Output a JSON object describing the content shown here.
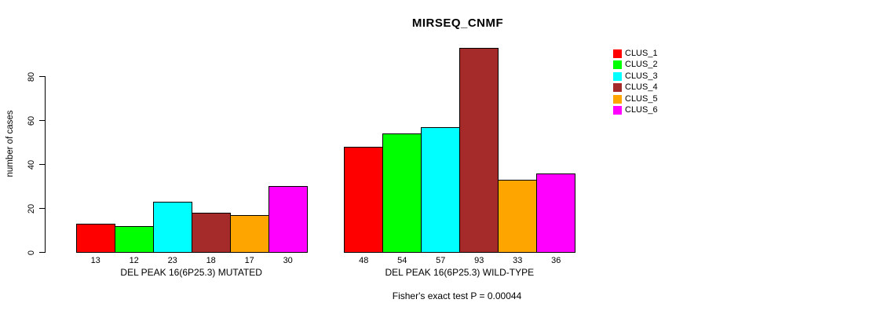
{
  "title": "MIRSEQ_CNMF",
  "y_axis": {
    "label": "number of cases",
    "ticks": [
      0,
      20,
      40,
      60,
      80
    ]
  },
  "footer": "Fisher's exact test P = 0.00044",
  "legend": [
    {
      "label": "CLUS_1",
      "color": "#FF0000"
    },
    {
      "label": "CLUS_2",
      "color": "#00FF00"
    },
    {
      "label": "CLUS_3",
      "color": "#00FFFF"
    },
    {
      "label": "CLUS_4",
      "color": "#A52A2A"
    },
    {
      "label": "CLUS_5",
      "color": "#FFA500"
    },
    {
      "label": "CLUS_6",
      "color": "#FF00FF"
    }
  ],
  "chart_data": {
    "type": "bar",
    "title": "MIRSEQ_CNMF",
    "ylabel": "number of cases",
    "ylim": [
      0,
      93
    ],
    "grid": false,
    "legend_position": "right",
    "categories": [
      "CLUS_1",
      "CLUS_2",
      "CLUS_3",
      "CLUS_4",
      "CLUS_5",
      "CLUS_6"
    ],
    "colors": [
      "#FF0000",
      "#00FF00",
      "#00FFFF",
      "#A52A2A",
      "#FFA500",
      "#FF00FF"
    ],
    "groups": [
      {
        "label": "DEL PEAK 16(6P25.3) MUTATED",
        "values": [
          13,
          12,
          23,
          18,
          17,
          30
        ]
      },
      {
        "label": "DEL PEAK 16(6P25.3) WILD-TYPE",
        "values": [
          48,
          54,
          57,
          93,
          33,
          36
        ]
      }
    ],
    "annotation": "Fisher's exact test P = 0.00044"
  }
}
